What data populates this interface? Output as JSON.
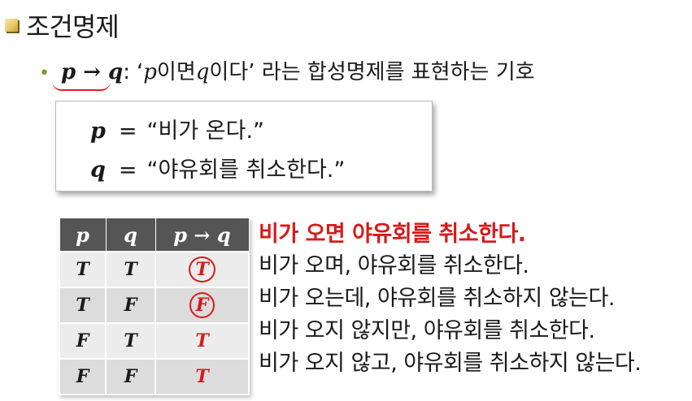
{
  "title": "조건명제",
  "definition": {
    "symbol": "p → q",
    "colon": ":",
    "text_before": "‘",
    "p": "p",
    "mid1": "이면 ",
    "q": "q",
    "mid2": "이다’ 라는 합성명제를 표현하는 기호"
  },
  "box": {
    "line1": {
      "var": "p",
      "eq": "=",
      "value": "“비가 온다.”"
    },
    "line2": {
      "var": "q",
      "eq": "=",
      "value": "“야유회를 취소한다.”"
    }
  },
  "truth_table": {
    "headers": [
      "p",
      "q",
      "p → q"
    ],
    "rows": [
      [
        "T",
        "T",
        "T"
      ],
      [
        "T",
        "F",
        "F"
      ],
      [
        "F",
        "T",
        "T"
      ],
      [
        "F",
        "F",
        "T"
      ]
    ]
  },
  "sentences": {
    "heading": "비가 오면 야유회를 취소한다.",
    "rows": [
      "비가 오며, 야유회를 취소한다.",
      "비가 오는데, 야유회를 취소하지 않는다.",
      "비가 오지 않지만, 야유회를 취소한다.",
      "비가 오지 않고, 야유회를 취소하지 않는다."
    ]
  },
  "colors": {
    "accent_red": "#d71a1a",
    "table_header": "#555555"
  }
}
